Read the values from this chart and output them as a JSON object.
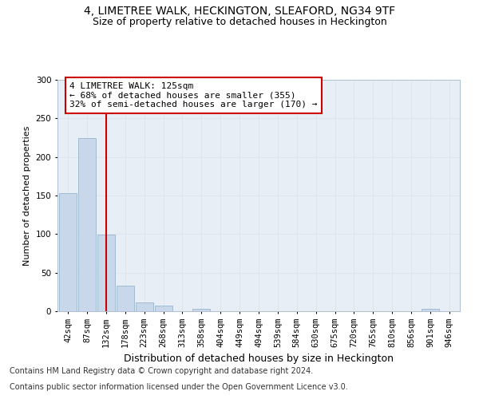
{
  "title": "4, LIMETREE WALK, HECKINGTON, SLEAFORD, NG34 9TF",
  "subtitle": "Size of property relative to detached houses in Heckington",
  "xlabel": "Distribution of detached houses by size in Heckington",
  "ylabel": "Number of detached properties",
  "bar_color": "#c8d8ea",
  "bar_edge_color": "#9ab5cc",
  "bar_values": [
    153,
    225,
    99,
    33,
    11,
    7,
    0,
    3,
    0,
    0,
    0,
    0,
    0,
    0,
    0,
    0,
    0,
    0,
    0,
    3,
    0
  ],
  "bin_labels": [
    "42sqm",
    "87sqm",
    "132sqm",
    "178sqm",
    "223sqm",
    "268sqm",
    "313sqm",
    "358sqm",
    "404sqm",
    "449sqm",
    "494sqm",
    "539sqm",
    "584sqm",
    "630sqm",
    "675sqm",
    "720sqm",
    "765sqm",
    "810sqm",
    "856sqm",
    "901sqm",
    "946sqm"
  ],
  "property_bin_index": 2,
  "vline_color": "#cc0000",
  "annotation_text": "4 LIMETREE WALK: 125sqm\n← 68% of detached houses are smaller (355)\n32% of semi-detached houses are larger (170) →",
  "annotation_box_color": "#ffffff",
  "annotation_box_edge_color": "#cc0000",
  "ylim": [
    0,
    300
  ],
  "yticks": [
    0,
    50,
    100,
    150,
    200,
    250,
    300
  ],
  "grid_color": "#dde6f0",
  "background_color": "#e8eef5",
  "footer_line1": "Contains HM Land Registry data © Crown copyright and database right 2024.",
  "footer_line2": "Contains public sector information licensed under the Open Government Licence v3.0.",
  "title_fontsize": 10,
  "subtitle_fontsize": 9,
  "ylabel_fontsize": 8,
  "xlabel_fontsize": 9,
  "tick_fontsize": 7.5,
  "annotation_fontsize": 8,
  "footer_fontsize": 7
}
